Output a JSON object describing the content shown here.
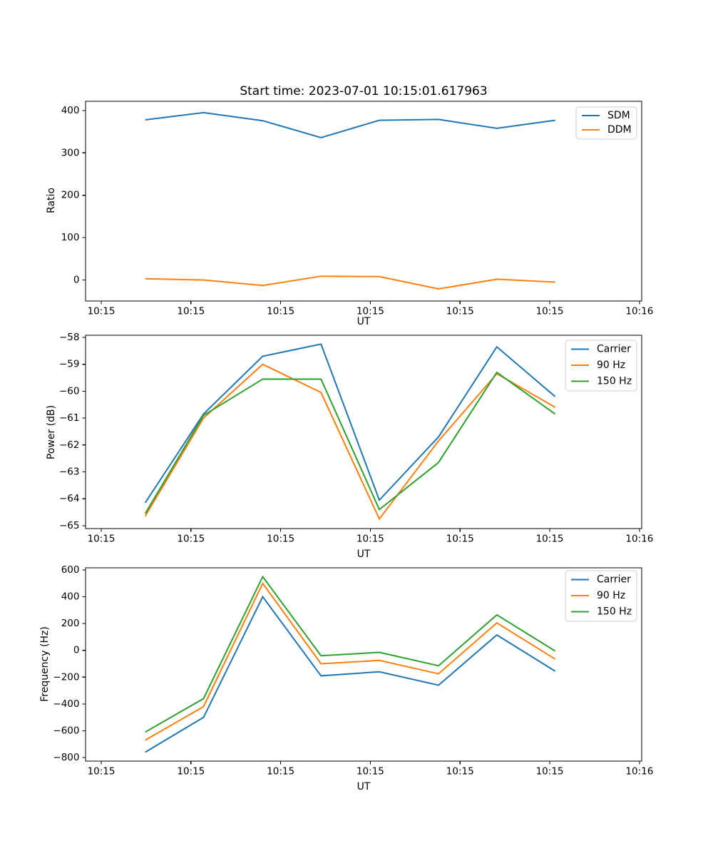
{
  "figure": {
    "title": "Start time: 2023-07-01 10:15:01.617963",
    "background": "#ffffff",
    "axis_color": "#000000"
  },
  "chart_data": [
    {
      "type": "line",
      "title": "Start time: 2023-07-01 10:15:01.617963",
      "xlabel": "UT",
      "ylabel": "Ratio",
      "x_seconds_after_10_15_00": [
        4.9,
        11.4,
        18.0,
        24.5,
        31.0,
        37.6,
        44.1,
        50.6
      ],
      "xlim_seconds": [
        -1.75,
        60.25
      ],
      "ylim": [
        -49.6,
        421.8
      ],
      "yticks": [
        400,
        300,
        200,
        100,
        0
      ],
      "xtick_seconds": [
        0,
        10,
        20,
        30,
        40,
        50,
        60
      ],
      "xtick_labels": [
        "10:15",
        "10:15",
        "10:15",
        "10:15",
        "10:15",
        "10:15",
        "10:16"
      ],
      "legend_position": "upper right",
      "grid": false,
      "series": [
        {
          "name": "SDM",
          "color": "#1f77b4",
          "values": [
            378,
            395,
            376,
            336,
            377,
            379,
            358,
            377
          ]
        },
        {
          "name": "DDM",
          "color": "#ff7f0e",
          "values": [
            3,
            0,
            -13,
            9,
            8,
            -21,
            2,
            -5
          ]
        }
      ]
    },
    {
      "type": "line",
      "title": "",
      "xlabel": "UT",
      "ylabel": "Power (dB)",
      "x_seconds_after_10_15_00": [
        4.9,
        11.4,
        18.0,
        24.5,
        31.0,
        37.6,
        44.1,
        50.6
      ],
      "xlim_seconds": [
        -1.75,
        60.25
      ],
      "ylim": [
        -65.11,
        -57.92
      ],
      "yticks": [
        -58,
        -59,
        -60,
        -61,
        -62,
        -63,
        -64,
        -65
      ],
      "xtick_seconds": [
        0,
        10,
        20,
        30,
        40,
        50,
        60
      ],
      "xtick_labels": [
        "10:15",
        "10:15",
        "10:15",
        "10:15",
        "10:15",
        "10:15",
        "10:16"
      ],
      "legend_position": "upper right",
      "grid": false,
      "series": [
        {
          "name": "Carrier",
          "color": "#1f77b4",
          "values": [
            -64.15,
            -60.85,
            -58.7,
            -58.25,
            -64.05,
            -61.7,
            -58.35,
            -60.2
          ]
        },
        {
          "name": "90 Hz",
          "color": "#ff7f0e",
          "values": [
            -64.65,
            -61.0,
            -59.0,
            -60.05,
            -64.75,
            -61.85,
            -59.35,
            -60.6
          ]
        },
        {
          "name": "150 Hz",
          "color": "#2ca02c",
          "values": [
            -64.55,
            -60.9,
            -59.55,
            -59.55,
            -64.4,
            -62.65,
            -59.3,
            -60.85
          ]
        }
      ]
    },
    {
      "type": "line",
      "title": "",
      "xlabel": "UT",
      "ylabel": "Frequency (Hz)",
      "x_seconds_after_10_15_00": [
        4.9,
        11.4,
        18.0,
        24.5,
        31.0,
        37.6,
        44.1,
        50.6
      ],
      "xlim_seconds": [
        -1.75,
        60.25
      ],
      "ylim": [
        -826.6,
        616.0
      ],
      "yticks": [
        600,
        400,
        200,
        0,
        -200,
        -400,
        -600,
        -800
      ],
      "xtick_seconds": [
        0,
        10,
        20,
        30,
        40,
        50,
        60
      ],
      "xtick_labels": [
        "10:15",
        "10:15",
        "10:15",
        "10:15",
        "10:15",
        "10:15",
        "10:16"
      ],
      "legend_position": "upper right",
      "grid": false,
      "series": [
        {
          "name": "Carrier",
          "color": "#1f77b4",
          "values": [
            -760,
            -500,
            400,
            -190,
            -160,
            -260,
            115,
            -155
          ]
        },
        {
          "name": "90 Hz",
          "color": "#ff7f0e",
          "values": [
            -670,
            -420,
            500,
            -100,
            -75,
            -175,
            205,
            -65
          ]
        },
        {
          "name": "150 Hz",
          "color": "#2ca02c",
          "values": [
            -610,
            -360,
            550,
            -40,
            -15,
            -115,
            265,
            -5
          ]
        }
      ]
    }
  ]
}
